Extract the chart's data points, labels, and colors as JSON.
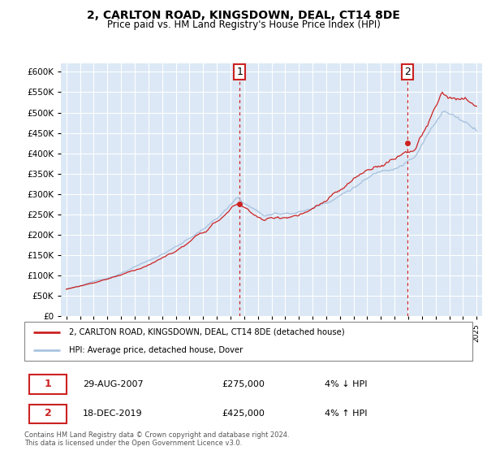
{
  "title": "2, CARLTON ROAD, KINGSDOWN, DEAL, CT14 8DE",
  "subtitle": "Price paid vs. HM Land Registry's House Price Index (HPI)",
  "ylim": [
    0,
    620000
  ],
  "yticks": [
    0,
    50000,
    100000,
    150000,
    200000,
    250000,
    300000,
    350000,
    400000,
    450000,
    500000,
    550000,
    600000
  ],
  "hpi_color": "#aac4e0",
  "price_color": "#cc2222",
  "sale1_t": 2007.67,
  "sale1_v": 275000,
  "sale2_t": 2019.96,
  "sale2_v": 425000,
  "marker1_label": "1",
  "marker1_date": "29-AUG-2007",
  "marker1_price": "£275,000",
  "marker1_pct": "4% ↓ HPI",
  "marker2_label": "2",
  "marker2_date": "18-DEC-2019",
  "marker2_price": "£425,000",
  "marker2_pct": "4% ↑ HPI",
  "legend_line1": "2, CARLTON ROAD, KINGSDOWN, DEAL, CT14 8DE (detached house)",
  "legend_line2": "HPI: Average price, detached house, Dover",
  "footer1": "Contains HM Land Registry data © Crown copyright and database right 2024.",
  "footer2": "This data is licensed under the Open Government Licence v3.0.",
  "bg_color": "#ffffff",
  "plot_bg_color": "#dce8f5",
  "grid_color": "#ffffff",
  "xlim_left": 1994.6,
  "xlim_right": 2025.4
}
